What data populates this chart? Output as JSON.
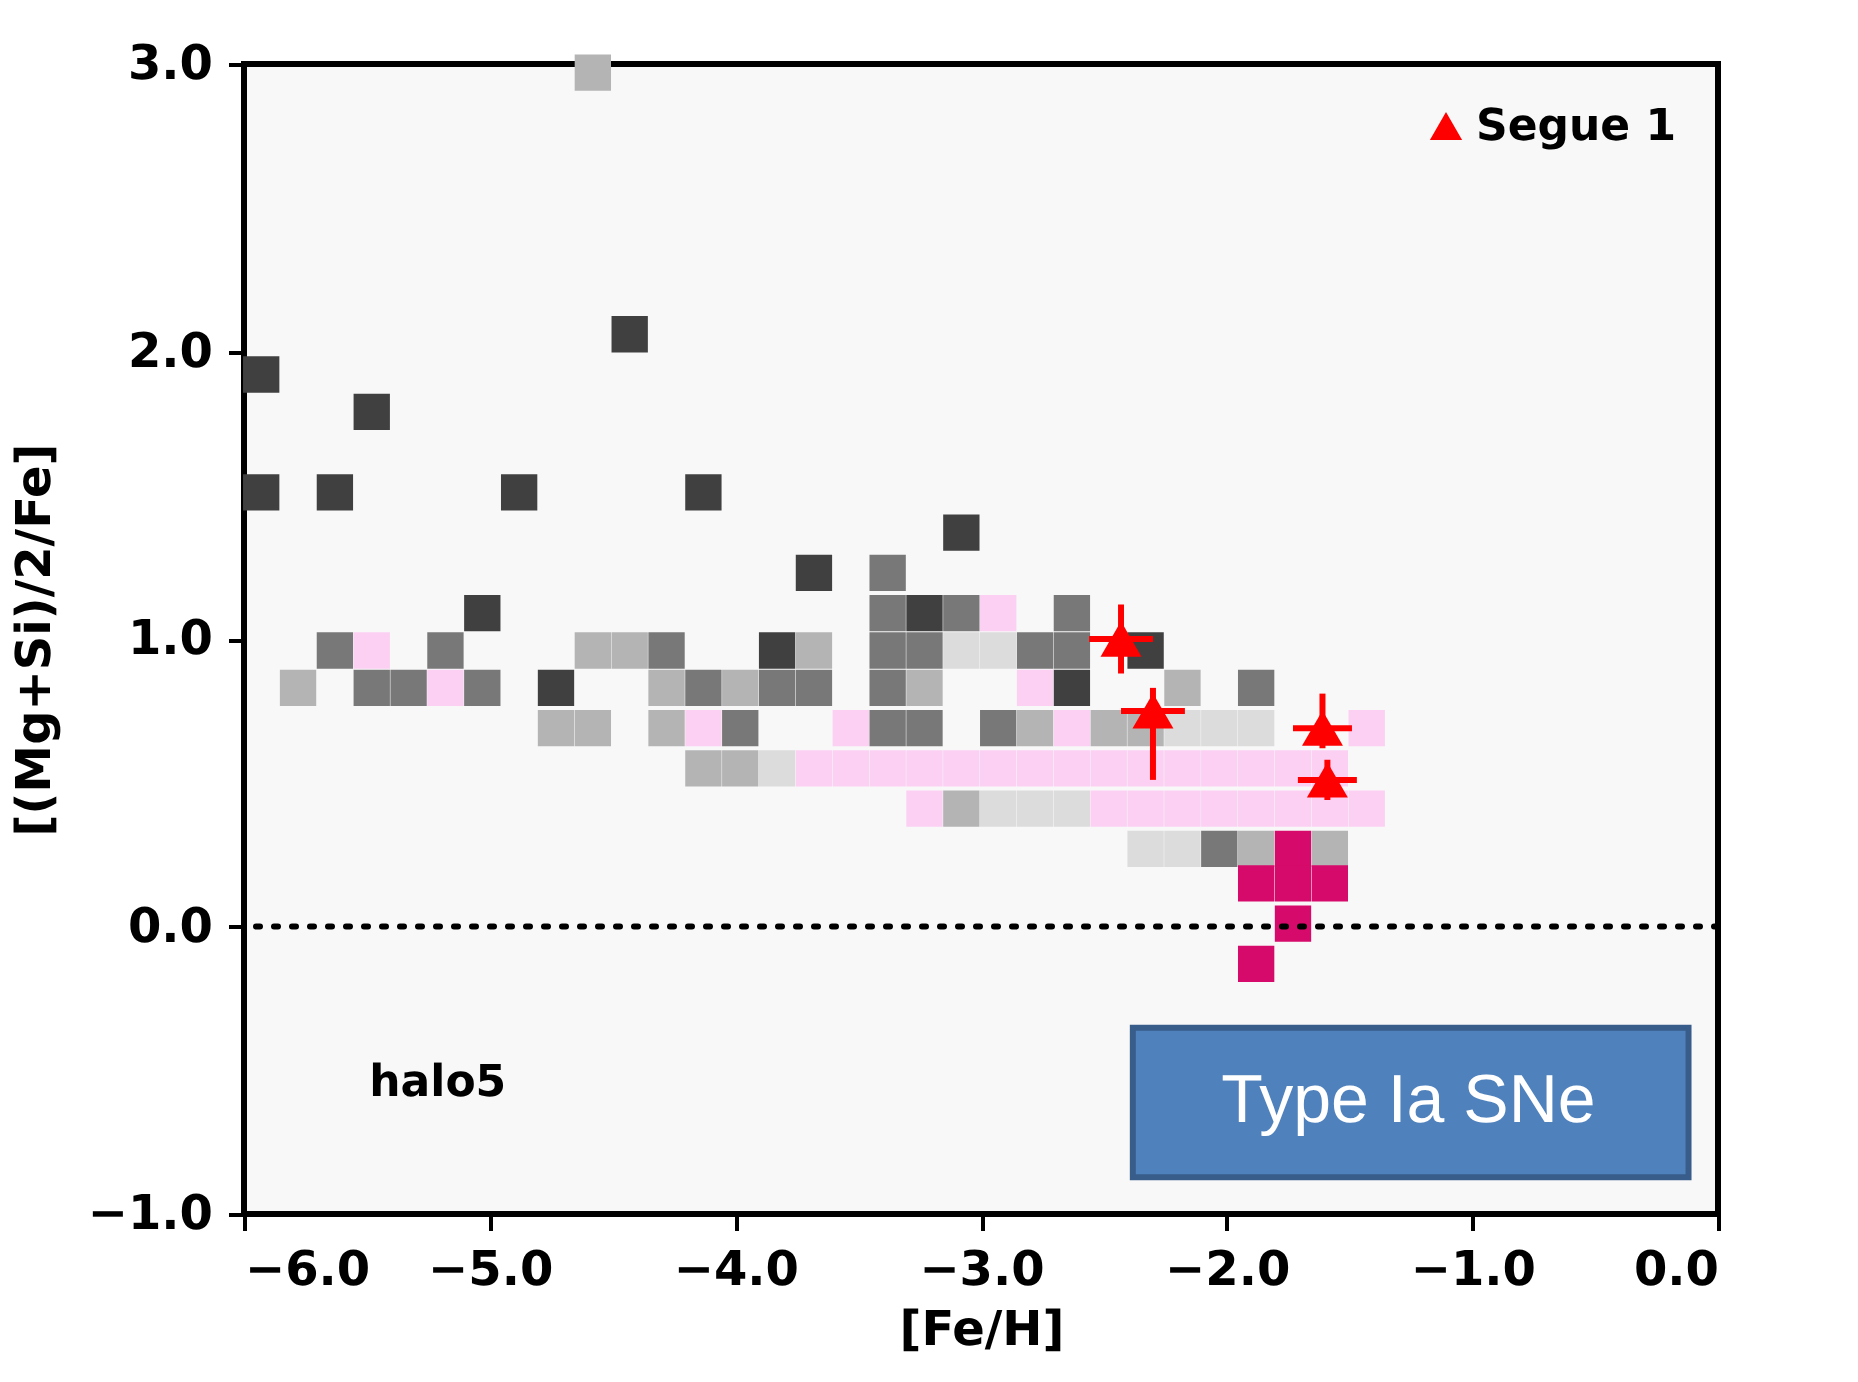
{
  "chart_data": {
    "type": "scatter",
    "xlabel": "[Fe/H]",
    "ylabel": "[(Mg+Si)/2/Fe]",
    "xlim": [
      -6.0,
      0.0
    ],
    "ylim": [
      -1.0,
      3.0
    ],
    "xticks": [
      {
        "value": -6,
        "label": "−6.0"
      },
      {
        "value": -5,
        "label": "−5.0"
      },
      {
        "value": -4,
        "label": "−4.0"
      },
      {
        "value": -3,
        "label": "−3.0"
      },
      {
        "value": -2,
        "label": "−2.0"
      },
      {
        "value": -1,
        "label": "−1.0"
      },
      {
        "value": 0,
        "label": "0.0"
      }
    ],
    "yticks": [
      {
        "value": -1,
        "label": "−1.0"
      },
      {
        "value": 0,
        "label": "0.0"
      },
      {
        "value": 1,
        "label": "1.0"
      },
      {
        "value": 2,
        "label": "2.0"
      },
      {
        "value": 3,
        "label": "3.0"
      }
    ],
    "grid": false,
    "legend": "top right",
    "ref_lines": [
      {
        "axis": "y",
        "value": 0,
        "color": "#000000",
        "line_style": "dotted"
      }
    ],
    "annotations": [
      "halo5",
      "Type Ia SNe"
    ],
    "series": [
      {
        "marker": "square",
        "color": "#404040",
        "x": [
          -5.93,
          -5.48,
          -5.93,
          -5.63,
          -4.88,
          -4.13,
          -4.43,
          -3.08,
          -3.68,
          -5.03,
          -3.23,
          -3.83,
          -2.33,
          -4.73,
          -2.63
        ],
        "values": [
          1.92,
          1.79,
          1.51,
          1.51,
          1.51,
          1.51,
          2.06,
          1.37,
          1.23,
          1.09,
          1.09,
          0.96,
          0.96,
          0.83,
          0.83
        ]
      },
      {
        "marker": "square",
        "color": "#787878",
        "x": [
          -3.38,
          -3.38,
          -3.08,
          -2.63,
          -5.63,
          -5.18,
          -4.28,
          -3.38,
          -3.23,
          -2.78,
          -2.63,
          -5.48,
          -5.33,
          -5.03,
          -4.13,
          -3.83,
          -3.68,
          -3.38,
          -1.88,
          -3.98,
          -3.38,
          -3.23,
          -2.93,
          -2.03
        ],
        "values": [
          1.23,
          1.09,
          1.09,
          1.09,
          0.96,
          0.96,
          0.96,
          0.96,
          0.96,
          0.96,
          0.96,
          0.83,
          0.83,
          0.83,
          0.83,
          0.83,
          0.83,
          0.83,
          0.83,
          0.69,
          0.69,
          0.69,
          0.69,
          0.27
        ]
      },
      {
        "marker": "square",
        "color": "#b4b4b4",
        "x": [
          -4.58,
          -4.58,
          -4.43,
          -3.68,
          -5.78,
          -4.28,
          -3.98,
          -3.23,
          -2.18,
          -4.73,
          -4.58,
          -4.28,
          -2.78,
          -2.48,
          -2.33,
          -4.13,
          -3.98,
          -3.08,
          -1.88,
          -1.58
        ],
        "values": [
          2.97,
          0.96,
          0.96,
          0.96,
          0.83,
          0.83,
          0.83,
          0.83,
          0.83,
          0.69,
          0.69,
          0.69,
          0.69,
          0.69,
          0.69,
          0.55,
          0.55,
          0.41,
          0.27,
          0.27
        ]
      },
      {
        "marker": "square",
        "color": "#dcdcdc",
        "x": [
          -3.08,
          -2.93,
          -2.18,
          -2.03,
          -1.88,
          -3.83,
          -2.93,
          -2.78,
          -2.63,
          -2.33,
          -2.18
        ],
        "values": [
          0.96,
          0.96,
          0.69,
          0.69,
          0.69,
          0.55,
          0.41,
          0.41,
          0.41,
          0.27,
          0.27
        ]
      },
      {
        "marker": "square",
        "color": "#fbd0f3",
        "x": [
          -2.93,
          -5.48,
          -5.18,
          -2.78,
          -4.13,
          -3.53,
          -2.63,
          -1.43,
          -3.68,
          -3.53,
          -3.38,
          -3.23,
          -3.08,
          -2.93,
          -2.78,
          -2.63,
          -2.48,
          -2.33,
          -2.18,
          -2.03,
          -1.88,
          -1.73,
          -1.58,
          -3.23,
          -2.48,
          -2.33,
          -2.18,
          -2.03,
          -1.88,
          -1.73,
          -1.58,
          -1.43
        ],
        "values": [
          1.09,
          0.96,
          0.83,
          0.83,
          0.69,
          0.69,
          0.69,
          0.69,
          0.55,
          0.55,
          0.55,
          0.55,
          0.55,
          0.55,
          0.55,
          0.55,
          0.55,
          0.55,
          0.55,
          0.55,
          0.55,
          0.55,
          0.55,
          0.41,
          0.41,
          0.41,
          0.41,
          0.41,
          0.41,
          0.41,
          0.41,
          0.41
        ]
      },
      {
        "marker": "square",
        "color": "#d60a6a",
        "x": [
          -1.73,
          -1.88,
          -1.73,
          -1.58,
          -1.73,
          -1.88
        ],
        "values": [
          0.27,
          0.15,
          0.15,
          0.15,
          0.01,
          -0.13
        ]
      },
      {
        "marker": "triangle",
        "name": "Segue 1",
        "color": "#ff0000",
        "x": [
          -2.43,
          -2.3,
          -1.61,
          -1.59
        ],
        "values": [
          1.0,
          0.75,
          0.69,
          0.51
        ],
        "errors": [
          0.12,
          [
            0.51,
            0.83
          ],
          [
            0.62,
            0.81
          ],
          0.07
        ],
        "xerrors": [
          0.13,
          0.13,
          0.12,
          0.12
        ]
      }
    ]
  }
}
